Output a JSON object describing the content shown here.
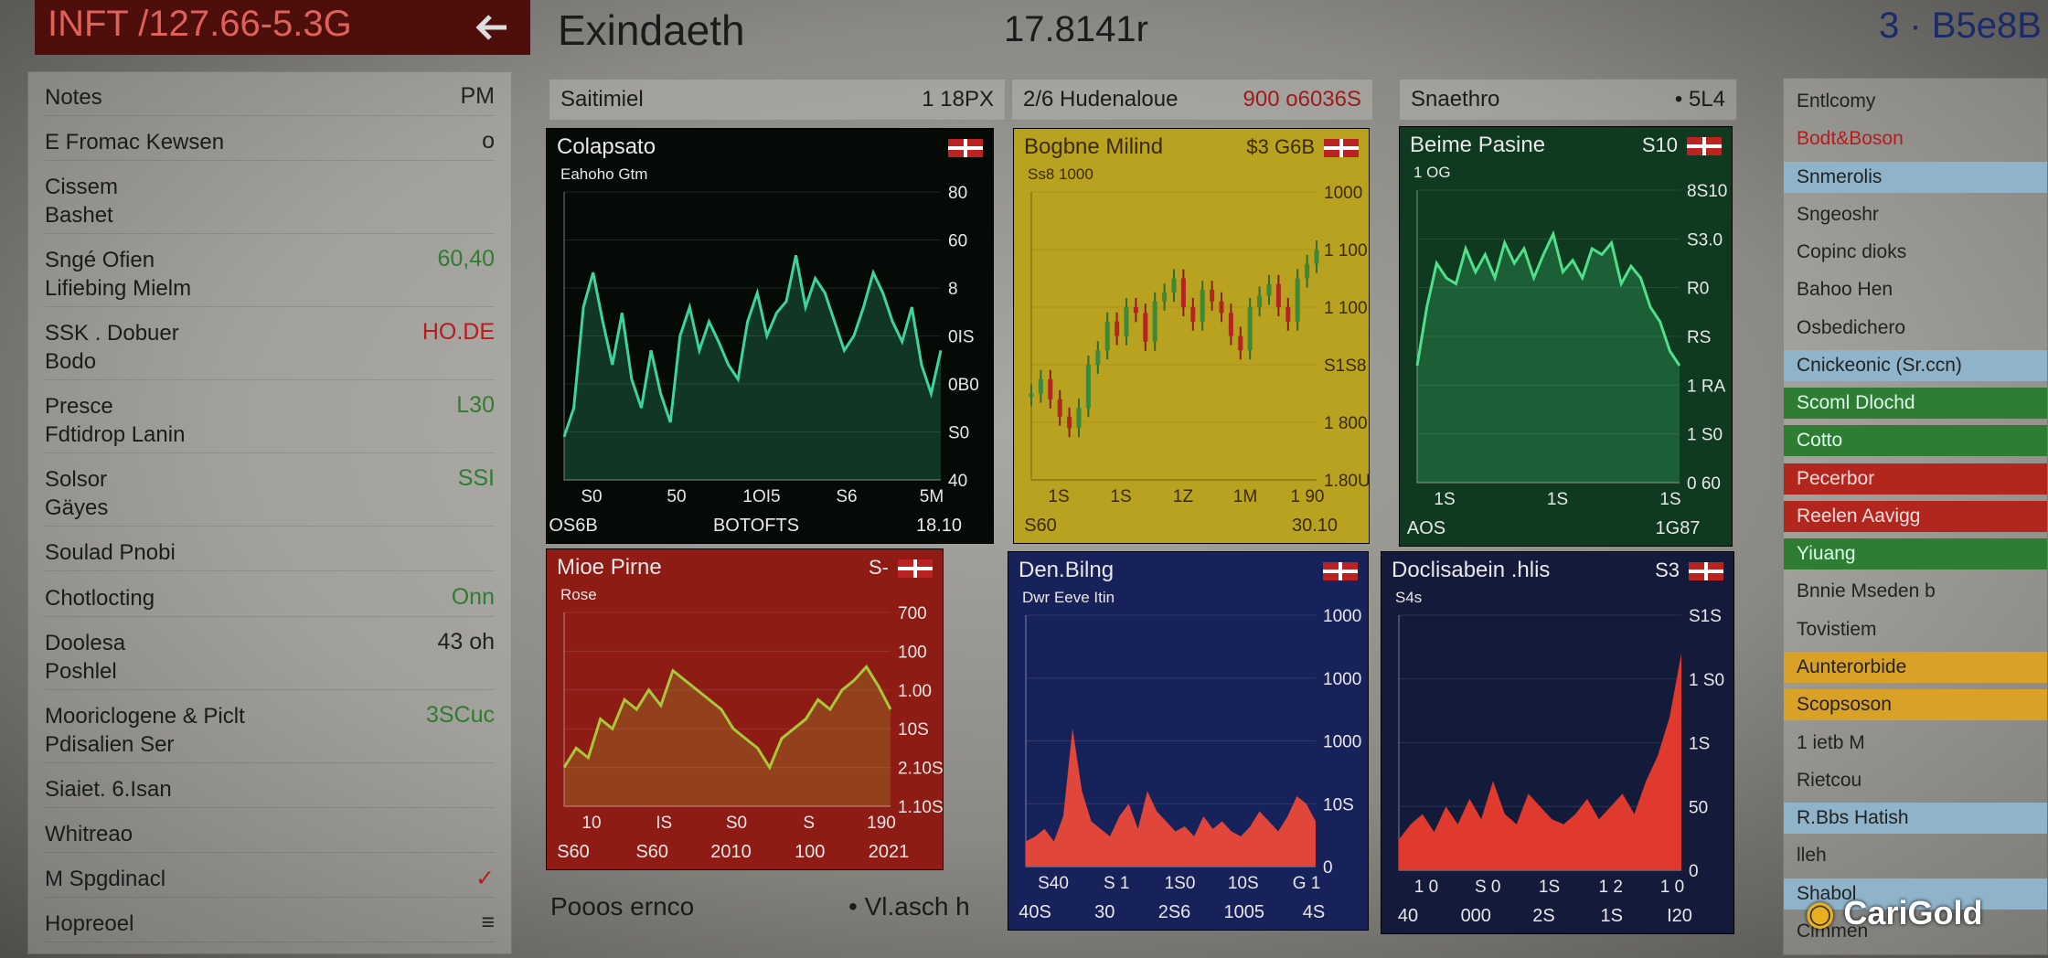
{
  "header": {
    "ticker": "INFT /127.66-5.3G",
    "title": "Exindaeth",
    "value": "17.8141r",
    "corner": "3 · B5e8B"
  },
  "left_panel": {
    "items": [
      {
        "lines": [
          "Notes"
        ],
        "value": "PM",
        "color": "#222"
      },
      {
        "lines": [
          "E Fromac Kewsen"
        ],
        "value": "o",
        "color": "#222"
      },
      {
        "lines": [
          "Cissem",
          "Bashet"
        ],
        "value": null,
        "color": "#222"
      },
      {
        "lines": [
          "Sngé Ofien",
          "Lifiebing Mielm"
        ],
        "value": "60,40",
        "color": "#2e7d32"
      },
      {
        "lines": [
          "SSK . Dobuer",
          "Bodo"
        ],
        "value": "HO.DE",
        "color": "#b71c1c"
      },
      {
        "lines": [
          "Presce",
          "Fdtidrop Lanin"
        ],
        "value": "L30",
        "color": "#2e7d32"
      },
      {
        "lines": [
          "Solsor",
          "Gäyes"
        ],
        "value": "SSI",
        "color": "#2e7d32"
      },
      {
        "lines": [
          "Soulad Pnobi"
        ],
        "value": null,
        "color": "#222"
      },
      {
        "lines": [
          "Chotlocting"
        ],
        "value": "Onn",
        "color": "#2e7d32"
      },
      {
        "lines": [
          "Doolesa",
          "Poshlel"
        ],
        "value": "43 oh",
        "color": "#222"
      },
      {
        "lines": [
          "Mooriclogene & Piclt",
          "Pdisalien Ser"
        ],
        "value": "3SCuc",
        "color": "#2e7d32"
      },
      {
        "lines": [
          "Siaiet. 6.Isan"
        ],
        "value": null,
        "color": "#b71c1c"
      },
      {
        "lines": [
          "Whitreao"
        ],
        "value": null,
        "color": "#222"
      },
      {
        "lines": [
          "M Spgdinacl"
        ],
        "value": "✓",
        "color": "#b71c1c"
      },
      {
        "lines": [
          "Hopreoel"
        ],
        "value": "≡",
        "color": "#222"
      }
    ]
  },
  "column_headers": [
    {
      "label": "Saitimiel",
      "value": "1 18PX"
    },
    {
      "label": "2/6 Hudenaloue",
      "value": "900 o6036S"
    },
    {
      "label": "Snaethro",
      "value": "• 5L4"
    }
  ],
  "charts": [
    {
      "type": "line",
      "title": "Colapsato",
      "badge": "",
      "subtitle": "Eahoho Gtm",
      "background": "#050a06",
      "color": "#3fd49a",
      "ylim": [
        0,
        100
      ],
      "values": [
        15,
        25,
        60,
        72,
        55,
        40,
        58,
        35,
        25,
        45,
        30,
        20,
        50,
        60,
        45,
        55,
        48,
        40,
        35,
        55,
        65,
        50,
        58,
        62,
        78,
        60,
        70,
        65,
        55,
        45,
        50,
        60,
        72,
        65,
        55,
        48,
        60,
        40,
        30,
        45
      ],
      "y_labels": [
        "80",
        "60",
        "8",
        "0IS",
        "0B0",
        "S0",
        "40"
      ],
      "x_labels": [
        "S0",
        "50",
        "1OI5",
        "S6",
        "5M"
      ],
      "footer": [
        "OS6B",
        "BOTOFTS",
        "18.10"
      ]
    },
    {
      "type": "candle",
      "title": "Bogbne Milind",
      "badge": "$3 G6B",
      "subtitle": "Ss8 1000",
      "background": "#b9a21f",
      "color": "#b3261e",
      "ylim": [
        0,
        100
      ],
      "values": [
        30,
        35,
        28,
        22,
        18,
        25,
        40,
        45,
        55,
        50,
        60,
        58,
        48,
        62,
        65,
        70,
        60,
        55,
        66,
        62,
        58,
        50,
        45,
        60,
        64,
        68,
        60,
        55,
        70,
        75,
        80
      ],
      "y_labels": [
        "1000",
        "1 100",
        "1 100",
        "S1S8",
        "1 800",
        "1.80U"
      ],
      "x_labels": [
        "1S",
        "1S",
        "1Z",
        "1M",
        "1 90"
      ],
      "footer": [
        "S60",
        "30.10"
      ]
    },
    {
      "type": "line",
      "title": "Beime Pasine",
      "badge": "S10",
      "subtitle": "1 OG",
      "background": "#0f3a1f",
      "color": "#4ee08a",
      "ylim": [
        0,
        100
      ],
      "values": [
        40,
        60,
        75,
        70,
        68,
        80,
        72,
        78,
        70,
        82,
        75,
        80,
        70,
        78,
        85,
        72,
        76,
        70,
        80,
        78,
        82,
        68,
        74,
        70,
        60,
        55,
        45,
        40
      ],
      "y_labels": [
        "8S10",
        "S3.0",
        "R0",
        "RS",
        "1 RA",
        "1 S0",
        "0 60"
      ],
      "x_labels": [
        "1S",
        "1S",
        "1S"
      ],
      "footer": [
        "AOS",
        "1G87"
      ]
    },
    {
      "type": "line",
      "title": "Mioe Pirne",
      "badge": "S-",
      "subtitle": "Rose",
      "background": "#8e1b14",
      "color": "#a8c83a",
      "ylim": [
        0,
        100
      ],
      "values": [
        20,
        30,
        25,
        45,
        40,
        55,
        50,
        60,
        52,
        70,
        65,
        60,
        55,
        50,
        40,
        35,
        30,
        20,
        35,
        40,
        45,
        55,
        50,
        60,
        65,
        72,
        62,
        50
      ],
      "y_labels": [
        "700",
        "100",
        "1.00",
        "10S",
        "2.10S",
        "1.10S"
      ],
      "x_labels": [
        "10",
        "IS",
        "S0",
        "S",
        "190"
      ],
      "footer": [
        "S60",
        "S60",
        "2010",
        "100",
        "2021"
      ]
    },
    {
      "type": "area",
      "title": "Den.Bilng",
      "badge": "",
      "subtitle": "Dwr Eeve Itin",
      "background": "#17215a",
      "color": "#e0473a",
      "ylim": [
        0,
        100
      ],
      "values": [
        10,
        12,
        15,
        10,
        20,
        55,
        30,
        18,
        15,
        12,
        20,
        25,
        15,
        30,
        22,
        18,
        14,
        16,
        12,
        20,
        15,
        18,
        14,
        12,
        16,
        22,
        18,
        14,
        20,
        28,
        25,
        18
      ],
      "y_labels": [
        "1000",
        "1000",
        "1000",
        "10S",
        "0"
      ],
      "x_labels": [
        "S40",
        "S 1",
        "1S0",
        "10S",
        "G 1"
      ],
      "footer": [
        "40S",
        "30",
        "2S6",
        "1005",
        "4S"
      ]
    },
    {
      "type": "area",
      "title": "Doclisabein .hlis",
      "badge": "S3",
      "subtitle": "S4s",
      "background": "#141a3a",
      "color": "#e03a2e",
      "ylim": [
        0,
        100
      ],
      "values": [
        12,
        18,
        22,
        15,
        25,
        18,
        28,
        20,
        35,
        22,
        18,
        30,
        25,
        20,
        18,
        22,
        28,
        20,
        25,
        30,
        22,
        35,
        45,
        60,
        85
      ],
      "y_labels": [
        "S1S",
        "1 S0",
        "1S",
        "50",
        "0"
      ],
      "x_labels": [
        "1 0",
        "S 0",
        "1S",
        "1 2",
        "1 0"
      ],
      "footer": [
        "40",
        "000",
        "2S",
        "1S",
        "I20"
      ]
    }
  ],
  "footer_row": {
    "left": "Pooos ernco",
    "right": "• Vl.asch h"
  },
  "right_panel": {
    "items": [
      {
        "text": "Entlcomy",
        "background": "none",
        "color": "#222"
      },
      {
        "text": "Bodt&Boson",
        "background": "none",
        "color": "#b71c1c"
      },
      {
        "text": "Snmerolis",
        "background": "#8fb3c9",
        "color": "#222"
      },
      {
        "text": "Sngeoshr",
        "background": "none",
        "color": "#222"
      },
      {
        "text": "Copinc dioks",
        "background": "none",
        "color": "#222"
      },
      {
        "text": "Bahoo Hen",
        "background": "none",
        "color": "#222"
      },
      {
        "text": "Osbedichero",
        "background": "none",
        "color": "#222"
      },
      {
        "text": "Cnickeonic (Sr.ccn)",
        "background": "#8fb3c9",
        "color": "#222"
      },
      {
        "text": "Scoml Dlochd",
        "background": "#2e7d32",
        "color": "#dfe"
      },
      {
        "text": "Cotto",
        "background": "#2e7d32",
        "color": "#dfe"
      },
      {
        "text": "Pecerbor",
        "background": "#b3261e",
        "color": "#fdd"
      },
      {
        "text": "Reelen Aavigg",
        "background": "#b3261e",
        "color": "#fdd"
      },
      {
        "text": "Yiuang",
        "background": "#2e7d32",
        "color": "#dfe"
      },
      {
        "text": "Bnnie Mseden b",
        "background": "none",
        "color": "#222"
      },
      {
        "text": "Tovistiem",
        "background": "none",
        "color": "#222"
      },
      {
        "text": "Aunterorbide",
        "background": "#d9a227",
        "color": "#222"
      },
      {
        "text": "Scopsoson",
        "background": "#d9a227",
        "color": "#222"
      },
      {
        "text": "1 ietb M",
        "background": "none",
        "color": "#222"
      },
      {
        "text": "Rietcou",
        "background": "none",
        "color": "#222"
      },
      {
        "text": "R.Bbs Hatish",
        "background": "#8fb3c9",
        "color": "#222"
      },
      {
        "text": "lleh",
        "background": "none",
        "color": "#222"
      },
      {
        "text": "Shabol",
        "background": "#8fb3c9",
        "color": "#222"
      },
      {
        "text": "Cimmen",
        "background": "none",
        "color": "#222"
      }
    ]
  },
  "watermark": "CariGold"
}
